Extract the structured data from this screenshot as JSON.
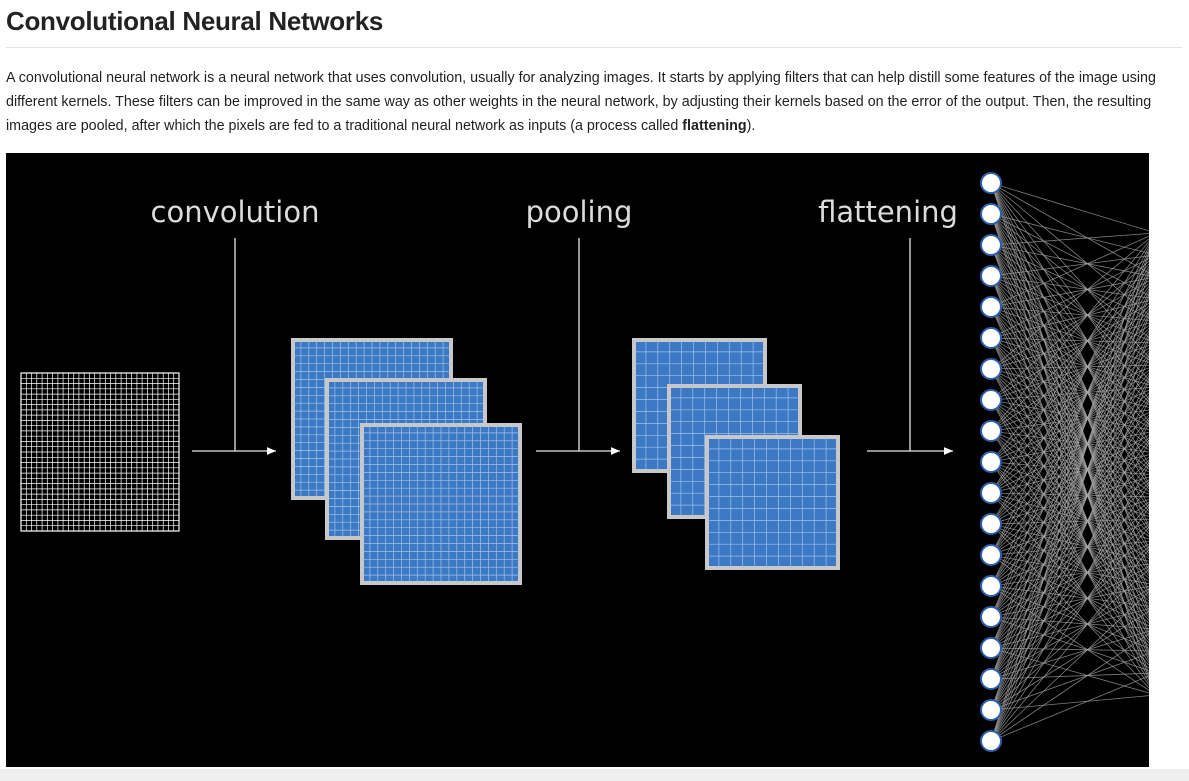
{
  "article": {
    "title": "Convolutional Neural Networks",
    "paragraph": {
      "text_before": "A convolutional neural network is a neural network that uses convolution, usually for analyzing images. It starts by applying filters that can help distill some features of the image using different kernels. These filters can be improved in the same way as other weights in the neural network, by adjusting their kernels based on the error of the output. Then, the resulting images are pooled, after which the pixels are fed to a traditional neural network as inputs (a process called ",
      "emphasis": "flattening",
      "text_after": ")."
    }
  },
  "diagram": {
    "stage_labels": {
      "convolution": "convolution",
      "pooling": "pooling",
      "flattening": "flattening"
    },
    "input_node_count": 19,
    "colors": {
      "background": "#000000",
      "feature_map_fill": "#3c78c3",
      "feature_map_border": "#c8c8c8",
      "grid_line": "#ffffff",
      "node": "#ffffff",
      "connection": "#aaaaaa"
    }
  }
}
